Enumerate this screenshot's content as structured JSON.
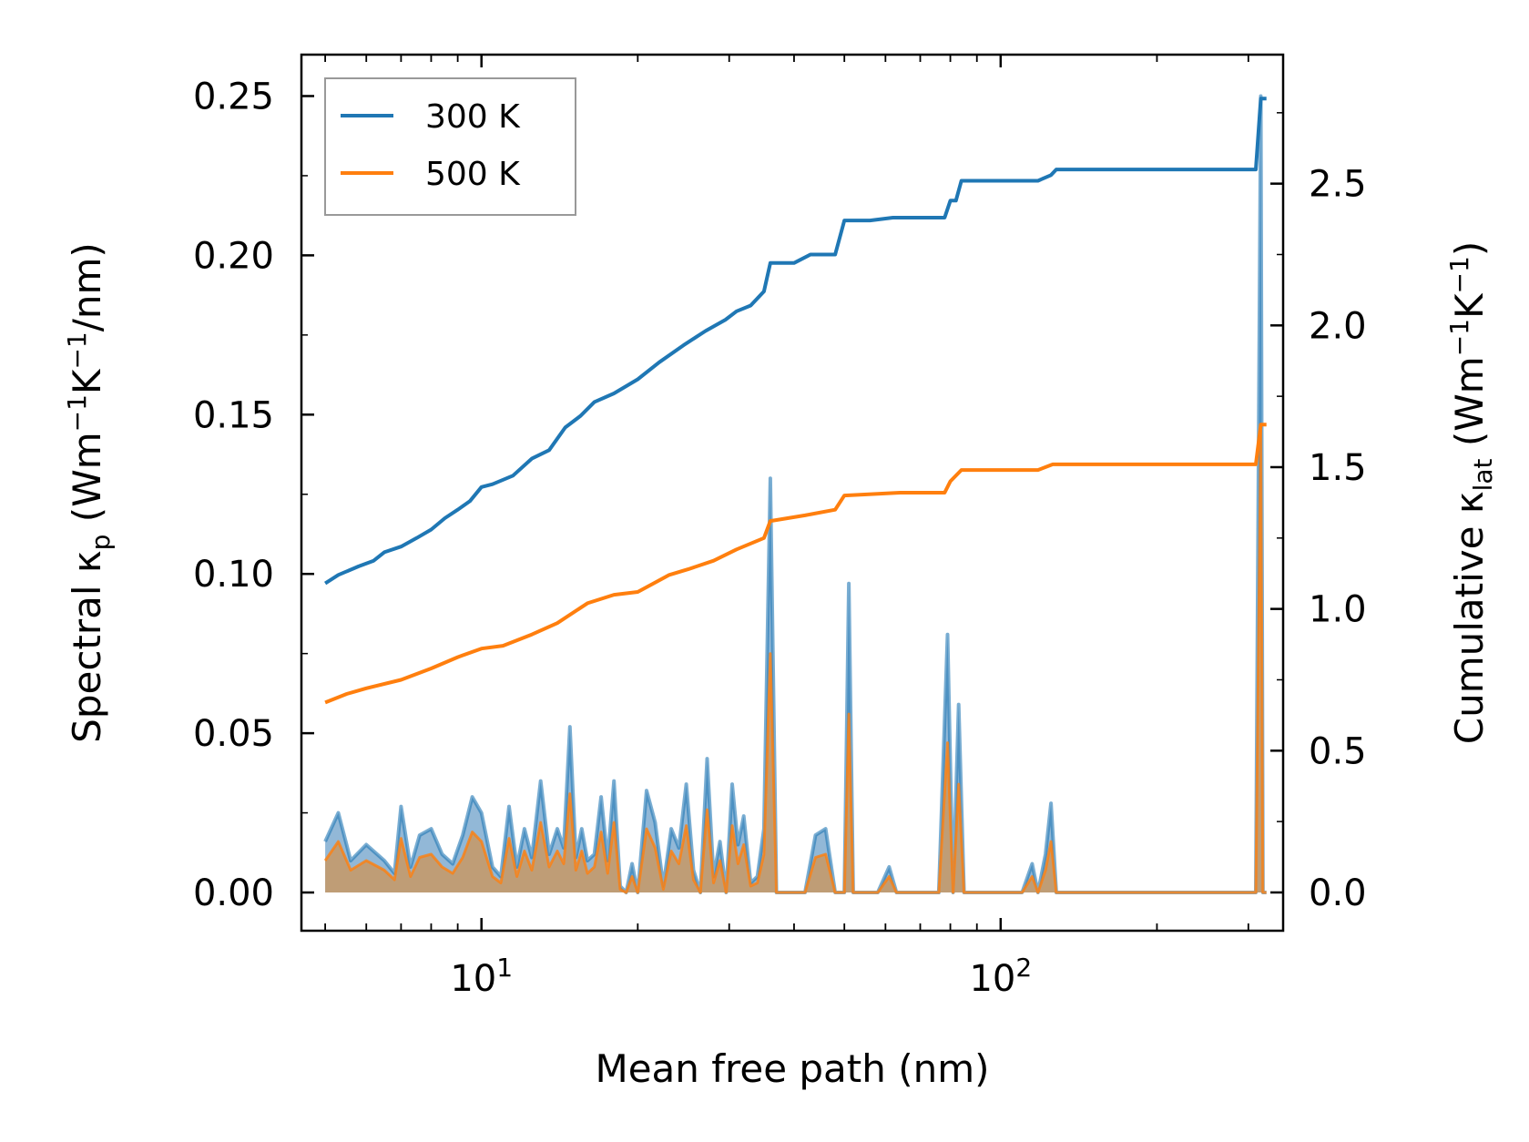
{
  "chart_data": {
    "type": "line",
    "xscale": "log",
    "xlim": [
      4.5,
      350
    ],
    "x_tick_labels": [
      {
        "value": 10,
        "base": "10",
        "exp": "1"
      },
      {
        "value": 100,
        "base": "10",
        "exp": "2"
      }
    ],
    "xlabel": "Mean free path (nm)",
    "ylabel_left": {
      "pre": "Spectral κ",
      "sub": "p",
      "mid": " (Wm",
      "sup1": "−1",
      "mid2": "K",
      "sup2": "−1",
      "post": "/nm)"
    },
    "ylabel_right": {
      "pre": "Cumulative κ",
      "sub": "lat",
      "mid": " (Wm",
      "sup1": "−1",
      "mid2": "K",
      "sup2": "−1",
      "post": ")"
    },
    "ylim_left": [
      -0.012,
      0.263
    ],
    "yticks_left": [
      "0.00",
      "0.05",
      "0.10",
      "0.15",
      "0.20",
      "0.25"
    ],
    "ylim_right": [
      -0.135,
      2.955
    ],
    "yticks_right": [
      "0.0",
      "0.5",
      "1.0",
      "1.5",
      "2.0",
      "2.5"
    ],
    "colors": {
      "c300": "#1f77b4",
      "c500": "#ff7f0e",
      "fill300": "#7facd0",
      "fill500": "#c49a6c"
    },
    "legend": {
      "position": "top-left",
      "entries": [
        "300 K",
        "500 K"
      ]
    },
    "series": [
      {
        "name": "300 K",
        "axis": "right",
        "points": [
          [
            5.0,
            1.09
          ],
          [
            5.3,
            1.12
          ],
          [
            5.8,
            1.15
          ],
          [
            6.2,
            1.17
          ],
          [
            6.5,
            1.2
          ],
          [
            7.0,
            1.22
          ],
          [
            7.5,
            1.25
          ],
          [
            8.0,
            1.28
          ],
          [
            8.5,
            1.32
          ],
          [
            9.0,
            1.35
          ],
          [
            9.5,
            1.38
          ],
          [
            10.0,
            1.43
          ],
          [
            10.5,
            1.44
          ],
          [
            11.5,
            1.47
          ],
          [
            12.5,
            1.53
          ],
          [
            13.5,
            1.56
          ],
          [
            14.5,
            1.64
          ],
          [
            15.5,
            1.68
          ],
          [
            16.5,
            1.73
          ],
          [
            18.0,
            1.76
          ],
          [
            20.0,
            1.81
          ],
          [
            22.0,
            1.87
          ],
          [
            24.5,
            1.93
          ],
          [
            27.0,
            1.98
          ],
          [
            29.5,
            2.02
          ],
          [
            31.0,
            2.05
          ],
          [
            33.0,
            2.07
          ],
          [
            35.0,
            2.12
          ],
          [
            36.0,
            2.22
          ],
          [
            40.0,
            2.22
          ],
          [
            43.0,
            2.25
          ],
          [
            48.0,
            2.25
          ],
          [
            50.0,
            2.37
          ],
          [
            56.0,
            2.37
          ],
          [
            62.0,
            2.38
          ],
          [
            78.0,
            2.38
          ],
          [
            80.0,
            2.44
          ],
          [
            82.0,
            2.44
          ],
          [
            84.0,
            2.51
          ],
          [
            118.0,
            2.51
          ],
          [
            125.0,
            2.53
          ],
          [
            128.0,
            2.55
          ],
          [
            310.0,
            2.55
          ],
          [
            317.0,
            2.8
          ],
          [
            325.0,
            2.8
          ]
        ]
      },
      {
        "name": "500 K",
        "axis": "right",
        "points": [
          [
            5.0,
            0.67
          ],
          [
            5.5,
            0.7
          ],
          [
            6.0,
            0.72
          ],
          [
            7.0,
            0.75
          ],
          [
            8.0,
            0.79
          ],
          [
            9.0,
            0.83
          ],
          [
            10.0,
            0.86
          ],
          [
            11.0,
            0.87
          ],
          [
            12.5,
            0.91
          ],
          [
            14.0,
            0.95
          ],
          [
            16.0,
            1.02
          ],
          [
            18.0,
            1.05
          ],
          [
            20.0,
            1.06
          ],
          [
            23.0,
            1.12
          ],
          [
            25.0,
            1.14
          ],
          [
            28.0,
            1.17
          ],
          [
            31.0,
            1.21
          ],
          [
            35.0,
            1.25
          ],
          [
            36.0,
            1.31
          ],
          [
            42.0,
            1.33
          ],
          [
            48.0,
            1.35
          ],
          [
            50.0,
            1.4
          ],
          [
            64.0,
            1.41
          ],
          [
            78.0,
            1.41
          ],
          [
            80.0,
            1.45
          ],
          [
            84.0,
            1.49
          ],
          [
            118.0,
            1.49
          ],
          [
            126.0,
            1.51
          ],
          [
            310.0,
            1.51
          ],
          [
            317.0,
            1.65
          ],
          [
            325.0,
            1.65
          ]
        ]
      },
      {
        "name": "Spectral 300 K",
        "axis": "left",
        "fill": true,
        "points": [
          [
            5.0,
            0.016
          ],
          [
            5.3,
            0.025
          ],
          [
            5.6,
            0.01
          ],
          [
            6.0,
            0.015
          ],
          [
            6.5,
            0.01
          ],
          [
            6.8,
            0.006
          ],
          [
            7.0,
            0.027
          ],
          [
            7.3,
            0.008
          ],
          [
            7.6,
            0.018
          ],
          [
            8.0,
            0.02
          ],
          [
            8.4,
            0.012
          ],
          [
            8.8,
            0.009
          ],
          [
            9.2,
            0.018
          ],
          [
            9.6,
            0.03
          ],
          [
            10.0,
            0.025
          ],
          [
            10.5,
            0.008
          ],
          [
            10.9,
            0.005
          ],
          [
            11.3,
            0.027
          ],
          [
            11.7,
            0.008
          ],
          [
            12.1,
            0.02
          ],
          [
            12.5,
            0.011
          ],
          [
            13.0,
            0.035
          ],
          [
            13.5,
            0.012
          ],
          [
            14.0,
            0.02
          ],
          [
            14.4,
            0.014
          ],
          [
            14.8,
            0.052
          ],
          [
            15.2,
            0.011
          ],
          [
            15.6,
            0.02
          ],
          [
            16.0,
            0.01
          ],
          [
            16.5,
            0.012
          ],
          [
            17.0,
            0.03
          ],
          [
            17.5,
            0.01
          ],
          [
            18.0,
            0.035
          ],
          [
            18.5,
            0.002
          ],
          [
            19.0,
            0.0
          ],
          [
            19.5,
            0.009
          ],
          [
            20.0,
            0.0
          ],
          [
            20.8,
            0.032
          ],
          [
            21.6,
            0.022
          ],
          [
            22.4,
            0.002
          ],
          [
            23.2,
            0.02
          ],
          [
            24.0,
            0.014
          ],
          [
            24.8,
            0.034
          ],
          [
            25.6,
            0.007
          ],
          [
            26.4,
            0.0
          ],
          [
            27.2,
            0.042
          ],
          [
            28.0,
            0.005
          ],
          [
            28.8,
            0.016
          ],
          [
            29.6,
            0.0
          ],
          [
            30.4,
            0.034
          ],
          [
            31.2,
            0.015
          ],
          [
            32.0,
            0.024
          ],
          [
            33.0,
            0.003
          ],
          [
            34.0,
            0.005
          ],
          [
            35.0,
            0.02
          ],
          [
            36.0,
            0.13
          ],
          [
            37.0,
            0.0
          ],
          [
            38.0,
            0.0
          ],
          [
            42.0,
            0.0
          ],
          [
            44.0,
            0.018
          ],
          [
            46.0,
            0.02
          ],
          [
            48.0,
            0.0
          ],
          [
            50.0,
            0.0
          ],
          [
            51.0,
            0.097
          ],
          [
            52.0,
            0.0
          ],
          [
            53.0,
            0.0
          ],
          [
            58.0,
            0.0
          ],
          [
            61.0,
            0.008
          ],
          [
            63.0,
            0.0
          ],
          [
            65.0,
            0.0
          ],
          [
            76.0,
            0.0
          ],
          [
            79.0,
            0.081
          ],
          [
            81.0,
            0.0
          ],
          [
            83.0,
            0.059
          ],
          [
            85.0,
            0.0
          ],
          [
            88.0,
            0.0
          ],
          [
            110.0,
            0.0
          ],
          [
            115.0,
            0.009
          ],
          [
            118.0,
            0.0
          ],
          [
            122.0,
            0.012
          ],
          [
            125.0,
            0.028
          ],
          [
            128.0,
            0.0
          ],
          [
            300.0,
            0.0
          ],
          [
            310.0,
            0.0
          ],
          [
            317.0,
            0.25
          ],
          [
            320.0,
            0.0
          ],
          [
            325.0,
            0.0
          ]
        ]
      },
      {
        "name": "Spectral 500 K",
        "axis": "left",
        "fill": true,
        "points": [
          [
            5.0,
            0.01
          ],
          [
            5.3,
            0.016
          ],
          [
            5.6,
            0.007
          ],
          [
            6.0,
            0.01
          ],
          [
            6.5,
            0.007
          ],
          [
            6.8,
            0.004
          ],
          [
            7.0,
            0.017
          ],
          [
            7.3,
            0.005
          ],
          [
            7.6,
            0.011
          ],
          [
            8.0,
            0.012
          ],
          [
            8.4,
            0.008
          ],
          [
            8.8,
            0.006
          ],
          [
            9.2,
            0.011
          ],
          [
            9.6,
            0.019
          ],
          [
            10.0,
            0.016
          ],
          [
            10.5,
            0.005
          ],
          [
            10.9,
            0.003
          ],
          [
            11.3,
            0.017
          ],
          [
            11.7,
            0.005
          ],
          [
            12.1,
            0.013
          ],
          [
            12.5,
            0.007
          ],
          [
            13.0,
            0.022
          ],
          [
            13.5,
            0.008
          ],
          [
            14.0,
            0.013
          ],
          [
            14.4,
            0.009
          ],
          [
            14.8,
            0.031
          ],
          [
            15.2,
            0.007
          ],
          [
            15.6,
            0.013
          ],
          [
            16.0,
            0.006
          ],
          [
            16.5,
            0.008
          ],
          [
            17.0,
            0.019
          ],
          [
            17.5,
            0.006
          ],
          [
            18.0,
            0.022
          ],
          [
            18.5,
            0.001
          ],
          [
            19.0,
            0.0
          ],
          [
            19.5,
            0.005
          ],
          [
            20.0,
            0.0
          ],
          [
            20.8,
            0.02
          ],
          [
            21.6,
            0.014
          ],
          [
            22.4,
            0.001
          ],
          [
            23.2,
            0.013
          ],
          [
            24.0,
            0.009
          ],
          [
            24.8,
            0.021
          ],
          [
            25.6,
            0.004
          ],
          [
            26.4,
            0.0
          ],
          [
            27.2,
            0.026
          ],
          [
            28.0,
            0.003
          ],
          [
            28.8,
            0.01
          ],
          [
            29.6,
            0.0
          ],
          [
            30.4,
            0.021
          ],
          [
            31.2,
            0.009
          ],
          [
            32.0,
            0.015
          ],
          [
            33.0,
            0.002
          ],
          [
            34.0,
            0.003
          ],
          [
            35.0,
            0.012
          ],
          [
            36.0,
            0.075
          ],
          [
            37.0,
            0.0
          ],
          [
            38.0,
            0.0
          ],
          [
            42.0,
            0.0
          ],
          [
            44.0,
            0.011
          ],
          [
            46.0,
            0.012
          ],
          [
            48.0,
            0.0
          ],
          [
            50.0,
            0.0
          ],
          [
            51.0,
            0.056
          ],
          [
            52.0,
            0.0
          ],
          [
            53.0,
            0.0
          ],
          [
            58.0,
            0.0
          ],
          [
            61.0,
            0.005
          ],
          [
            63.0,
            0.0
          ],
          [
            65.0,
            0.0
          ],
          [
            76.0,
            0.0
          ],
          [
            79.0,
            0.047
          ],
          [
            81.0,
            0.0
          ],
          [
            83.0,
            0.034
          ],
          [
            85.0,
            0.0
          ],
          [
            88.0,
            0.0
          ],
          [
            110.0,
            0.0
          ],
          [
            115.0,
            0.005
          ],
          [
            118.0,
            0.0
          ],
          [
            122.0,
            0.007
          ],
          [
            125.0,
            0.016
          ],
          [
            128.0,
            0.0
          ],
          [
            300.0,
            0.0
          ],
          [
            310.0,
            0.0
          ],
          [
            317.0,
            0.145
          ],
          [
            320.0,
            0.0
          ],
          [
            325.0,
            0.0
          ]
        ]
      }
    ]
  }
}
